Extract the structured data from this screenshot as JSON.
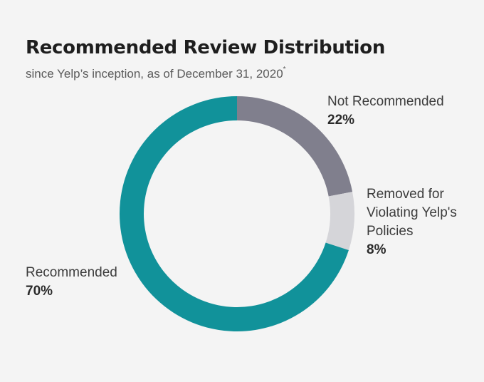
{
  "chart_data": {
    "type": "pie",
    "style": "donut",
    "title": "Recommended Review Distribution",
    "subtitle": "since Yelp’s inception, as of December 31, 2020",
    "subtitle_mark": "*",
    "start_angle_deg": 0,
    "direction": "clockwise",
    "slices": [
      {
        "label": "Not Recommended",
        "value": 22,
        "display": "22%",
        "color": "#807f8d"
      },
      {
        "label": "Removed for Violating Yelp's Policies",
        "value": 8,
        "display": "8%",
        "color": "#d5d5d9"
      },
      {
        "label": "Recommended",
        "value": 70,
        "display": "70%",
        "color": "#11929a"
      }
    ]
  },
  "labels": {
    "not_recommended": {
      "name": "Not Recommended",
      "pct": "22%"
    },
    "removed": {
      "line1": "Removed for",
      "line2": "Violating Yelp's",
      "line3": "Policies",
      "pct": "8%"
    },
    "recommended": {
      "name": "Recommended",
      "pct": "70%"
    }
  }
}
